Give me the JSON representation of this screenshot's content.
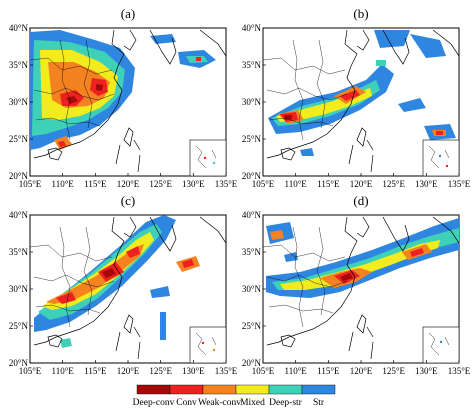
{
  "figure": {
    "panels": [
      {
        "id": "a",
        "label": "(a)"
      },
      {
        "id": "b",
        "label": "(b)"
      },
      {
        "id": "c",
        "label": "(c)"
      },
      {
        "id": "d",
        "label": "(d)"
      }
    ],
    "x_ticks": [
      "105°E",
      "110°E",
      "115°E",
      "120°E",
      "125°E",
      "130°E",
      "135°E"
    ],
    "y_ticks": [
      "20°N",
      "25°N",
      "30°N",
      "35°N",
      "40°N"
    ],
    "legend": [
      {
        "label": "Deep-conv",
        "color": "#a50a0a"
      },
      {
        "label": "Conv",
        "color": "#ee2020"
      },
      {
        "label": "Weak-conv",
        "color": "#f58220"
      },
      {
        "label": "Mixed",
        "color": "#f2ec1e"
      },
      {
        "label": "Deep-str",
        "color": "#3fd1b8"
      },
      {
        "label": "Str",
        "color": "#2e86e0"
      }
    ]
  }
}
